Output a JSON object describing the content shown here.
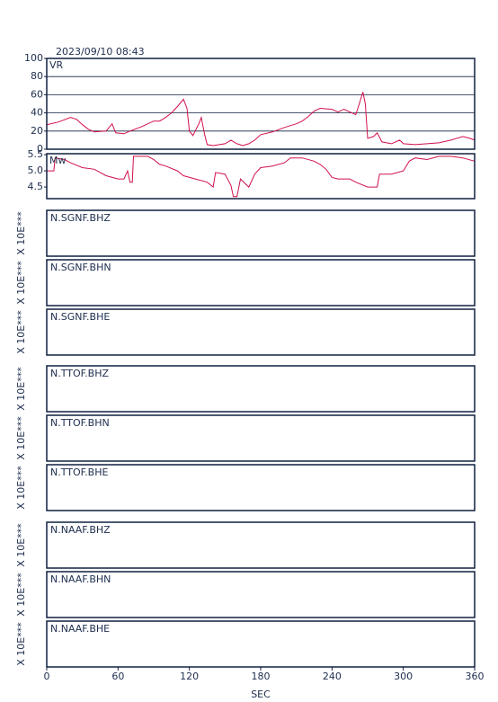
{
  "title": "2023/09/10 08:43",
  "chart_data": [
    {
      "type": "line",
      "title": "VR",
      "color": "#d0104a",
      "grid": true,
      "xlim": [
        0,
        360
      ],
      "ylim": [
        0,
        100
      ],
      "yticks": [
        0,
        20,
        40,
        60,
        80,
        100
      ],
      "x": [
        0,
        10,
        20,
        25,
        30,
        35,
        40,
        50,
        55,
        58,
        65,
        70,
        80,
        90,
        95,
        100,
        105,
        110,
        115,
        118,
        120,
        123,
        128,
        130,
        133,
        135,
        140,
        150,
        155,
        160,
        165,
        170,
        175,
        180,
        190,
        200,
        210,
        215,
        220,
        225,
        230,
        240,
        245,
        250,
        255,
        260,
        263,
        266,
        268,
        270,
        275,
        278,
        282,
        290,
        297,
        300,
        310,
        320,
        330,
        340,
        350,
        356,
        360
      ],
      "values": [
        27,
        30,
        35,
        33,
        27,
        22,
        19,
        20,
        28,
        18,
        17,
        20,
        25,
        31,
        31,
        35,
        40,
        47,
        55,
        45,
        20,
        15,
        28,
        35,
        15,
        5,
        4,
        6,
        10,
        6,
        4,
        6,
        10,
        16,
        19,
        24,
        28,
        31,
        36,
        42,
        45,
        44,
        41,
        44,
        41,
        38,
        50,
        63,
        50,
        12,
        14,
        18,
        8,
        6,
        10,
        6,
        5,
        6,
        7,
        10,
        14,
        12,
        10
      ]
    },
    {
      "type": "line",
      "title": "Mw",
      "color": "#d0104a",
      "grid": false,
      "xlim": [
        0,
        360
      ],
      "ylim": [
        4.14,
        5.53
      ],
      "yticks": [
        {
          "value": 4.5,
          "label": "4.5"
        },
        {
          "value": 5,
          "label": "5.0"
        },
        {
          "value": 5.5,
          "label": "5.5"
        }
      ],
      "x": [
        0,
        6,
        7,
        15,
        20,
        30,
        40,
        50,
        60,
        65,
        68,
        70,
        72,
        73,
        85,
        90,
        95,
        100,
        110,
        115,
        125,
        135,
        140,
        142,
        150,
        155,
        157,
        160,
        163,
        170,
        175,
        180,
        190,
        200,
        205,
        215,
        225,
        230,
        235,
        240,
        245,
        255,
        260,
        270,
        278,
        280,
        290,
        300,
        305,
        310,
        320,
        330,
        340,
        350,
        360
      ],
      "values": [
        5.0,
        5.0,
        5.4,
        5.35,
        5.25,
        5.1,
        5.05,
        4.85,
        4.75,
        4.75,
        5.0,
        4.65,
        4.65,
        5.45,
        5.45,
        5.35,
        5.2,
        5.15,
        5.0,
        4.85,
        4.75,
        4.65,
        4.5,
        4.95,
        4.9,
        4.55,
        4.2,
        4.2,
        4.75,
        4.5,
        4.9,
        5.1,
        5.15,
        5.25,
        5.4,
        5.4,
        5.3,
        5.2,
        5.05,
        4.8,
        4.75,
        4.75,
        4.65,
        4.5,
        4.5,
        4.9,
        4.9,
        5.0,
        5.3,
        5.4,
        5.35,
        5.45,
        5.45,
        5.4,
        5.3
      ]
    }
  ],
  "traces": [
    {
      "name": "N.SGNF.BHZ",
      "scale": "X 10E***"
    },
    {
      "name": "N.SGNF.BHN",
      "scale": "X 10E***"
    },
    {
      "name": "N.SGNF.BHE",
      "scale": "X 10E***"
    },
    {
      "name": "N.TTOF.BHZ",
      "scale": "X 10E***"
    },
    {
      "name": "N.TTOF.BHN",
      "scale": "X 10E***"
    },
    {
      "name": "N.TTOF.BHE",
      "scale": "X 10E***"
    },
    {
      "name": "N.NAAF.BHZ",
      "scale": "X 10E***"
    },
    {
      "name": "N.NAAF.BHN",
      "scale": "X 10E***"
    },
    {
      "name": "N.NAAF.BHE",
      "scale": "X 10E***"
    }
  ],
  "x_axis": {
    "label": "SEC",
    "xlim": [
      0,
      360
    ],
    "xticks": [
      0,
      60,
      120,
      180,
      240,
      300,
      360
    ]
  }
}
